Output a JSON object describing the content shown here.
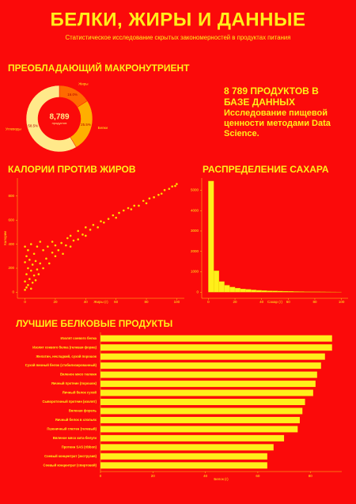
{
  "header": {
    "title": "БЕЛКИ, ЖИРЫ И ДАННЫЕ",
    "subtitle": "Статистическое исследование скрытых закономерностей в продуктах питания"
  },
  "info": {
    "headline": "8 789 ПРОДУКТОВ В БАЗЕ ДАННЫХ",
    "text": "Исследование пищевой ценности методами Data Science."
  },
  "chart_data": [
    {
      "type": "pie",
      "title": "ПРЕОБЛАДАЮЩИЙ МАКРОНУТРИЕНТ",
      "center_text": "8,789",
      "center_subtext": "продуктов",
      "categories": [
        "Жиры",
        "Белки",
        "Углеводы"
      ],
      "values": [
        16.0,
        25.5,
        58.5
      ],
      "value_labels": [
        "16.0%",
        "25.5%",
        "58.5%"
      ],
      "colors": [
        "#ff6a00",
        "#ffae00",
        "#ffe98a"
      ]
    },
    {
      "type": "scatter",
      "title": "КАЛОРИИ ПРОТИВ ЖИРОВ",
      "xlabel": "Жиры (г)",
      "ylabel": "Калории",
      "color": "#ffff00",
      "x": [
        0,
        0,
        0,
        0,
        1,
        1,
        1,
        2,
        2,
        2,
        3,
        3,
        4,
        4,
        4,
        5,
        5,
        6,
        6,
        7,
        7,
        8,
        8,
        9,
        10,
        10,
        12,
        12,
        14,
        15,
        16,
        18,
        18,
        20,
        20,
        22,
        24,
        25,
        27,
        28,
        30,
        30,
        32,
        35,
        35,
        38,
        40,
        40,
        43,
        45,
        48,
        50,
        52,
        55,
        58,
        60,
        62,
        65,
        68,
        70,
        72,
        75,
        78,
        80,
        82,
        85,
        88,
        90,
        92,
        95,
        97,
        99,
        100
      ],
      "values": [
        20,
        90,
        250,
        380,
        40,
        150,
        300,
        60,
        200,
        350,
        110,
        270,
        30,
        180,
        400,
        80,
        230,
        140,
        320,
        100,
        260,
        190,
        380,
        150,
        240,
        420,
        200,
        350,
        280,
        380,
        240,
        330,
        420,
        300,
        390,
        350,
        410,
        320,
        390,
        450,
        380,
        470,
        430,
        440,
        510,
        480,
        470,
        540,
        520,
        560,
        540,
        590,
        580,
        610,
        640,
        620,
        660,
        680,
        700,
        690,
        720,
        720,
        760,
        740,
        780,
        790,
        810,
        820,
        850,
        860,
        880,
        884,
        900
      ],
      "xlim": [
        -5,
        105
      ],
      "xticks": [
        0,
        20,
        40,
        60,
        80,
        100
      ],
      "ylim": [
        -50,
        950
      ],
      "yticks": [
        0,
        200,
        400,
        600,
        800
      ]
    },
    {
      "type": "histogram",
      "title": "РАСПРЕДЕЛЕНИЕ САХАРА",
      "xlabel": "Сахар (г)",
      "color": "#ffef1a",
      "bins": [
        0,
        4,
        8,
        12,
        16,
        20,
        24,
        28,
        32,
        36,
        40,
        44,
        48,
        52,
        56,
        60,
        64,
        68,
        72,
        76,
        80,
        84,
        88,
        92,
        96,
        100
      ],
      "values": [
        5450,
        1050,
        520,
        340,
        250,
        200,
        160,
        140,
        110,
        90,
        75,
        65,
        60,
        50,
        45,
        38,
        30,
        28,
        22,
        20,
        18,
        15,
        12,
        10,
        8
      ],
      "xlim": [
        -5,
        105
      ],
      "xticks": [
        0,
        20,
        40,
        60,
        80,
        100
      ],
      "ylim": [
        -300,
        5600
      ],
      "yticks": [
        0,
        1000,
        2000,
        3000,
        4000,
        5000
      ]
    },
    {
      "type": "barh",
      "title": "ЛУЧШИЕ БЕЛКОВЫЕ ПРОДУКТЫ",
      "xlabel": "Белок (г)",
      "color": "#ffef1a",
      "categories": [
        "Изолят соевого белка",
        "Изолят соевого белка (гелевая форма)",
        "Желатин, несладкий, сухой порошок",
        "Сухой яичный белок (стабилизированный)",
        "Вяленое мясо тюленя",
        "Яичный протеин (порошок)",
        "Яичный белок сухой",
        "Сывороточный протеин (изолят)",
        "Вяленая форель",
        "Яичный белок в хлопьях",
        "Пшеничный глютен (гелевый)",
        "Вяленое мясо кита-белуги",
        "Протеин SAS (ribbon)",
        "Соевый концентрат (экструзия)",
        "Соевый концентрат (спиртовой)"
      ],
      "values": [
        88.3,
        88.3,
        85.6,
        84.1,
        82.6,
        82.0,
        81.1,
        78.0,
        77.0,
        76.0,
        75.2,
        70.0,
        66.0,
        63.6,
        63.6
      ],
      "xlim": [
        0,
        92
      ],
      "xticks": [
        0,
        20,
        40,
        60,
        80
      ]
    }
  ]
}
